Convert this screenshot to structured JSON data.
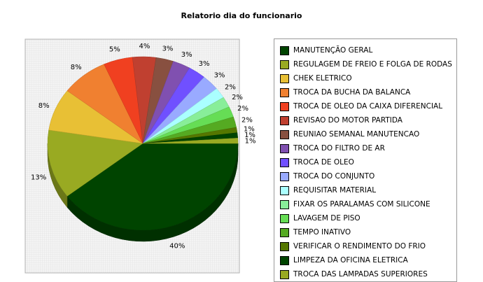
{
  "chart_data": {
    "type": "pie",
    "title": "Relatorio dia do funcionario",
    "categories": [
      "MANUTENÇÃO GERAL",
      "REGULAGEM DE FREIO E FOLGA DE RODAS",
      "CHEK ELETRICO",
      "TROCA DA BUCHA DA BALANCA",
      "TROCA DE OLEO DA CAIXA DIFERENCIAL",
      "REVISAO DO MOTOR PARTIDA",
      "REUNIAO SEMANAL MANUTENCAO",
      "TROCA DO FILTRO DE AR",
      "TROCA DE OLEO",
      "TROCA DO CONJUNTO",
      "REQUISITAR MATERIAL",
      "FIXAR OS PARALAMAS COM SILICONE",
      "LAVAGEM DE PISO",
      "TEMPO INATIVO",
      "VERIFICAR O RENDIMENTO DO FRIO",
      "LIMPEZA DA OFICINA ELETRICA",
      "TROCA DAS LAMPADAS SUPERIORES"
    ],
    "values": [
      40,
      13,
      8,
      8,
      5,
      4,
      3,
      3,
      3,
      3,
      2,
      2,
      2,
      2,
      1,
      1,
      1
    ],
    "labels": [
      "40%",
      "13%",
      "8%",
      "8%",
      "5%",
      "4%",
      "3%",
      "3%",
      "3%",
      "3%",
      "2%",
      "2%",
      "2%",
      "2%",
      "1%",
      "1%",
      "1%"
    ],
    "colors": [
      "#004400",
      "#99aa22",
      "#e8c035",
      "#f08030",
      "#f04020",
      "#c04030",
      "#885040",
      "#8050b0",
      "#7050ff",
      "#99aaff",
      "#aaffff",
      "#88ee99",
      "#66dd55",
      "#55aa22",
      "#557700",
      "#004400",
      "#99aa22"
    ],
    "legend_position": "right",
    "three_d": true,
    "background_grid": true
  }
}
